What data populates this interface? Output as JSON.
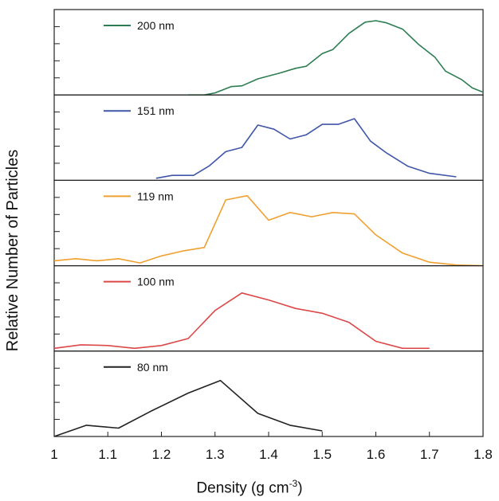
{
  "chart_data": {
    "type": "line",
    "xlabel": "Density (g cm",
    "xlabel_sup": "-3",
    "xlabel_end": ")",
    "ylabel": "Relative Number of Particles",
    "xlim": [
      1.0,
      1.8
    ],
    "x_ticks": [
      "1",
      "1.1",
      "1.2",
      "1.3",
      "1.4",
      "1.5",
      "1.6",
      "1.7",
      "1.8"
    ],
    "series": [
      {
        "name": "200 nm",
        "color": "#2e7d52",
        "ymax": 1.0,
        "x": [
          1.25,
          1.28,
          1.3,
          1.33,
          1.35,
          1.38,
          1.42,
          1.45,
          1.47,
          1.5,
          1.52,
          1.55,
          1.58,
          1.6,
          1.62,
          1.65,
          1.68,
          1.71,
          1.73,
          1.76,
          1.78,
          1.8
        ],
        "y": [
          0.0,
          0.0,
          0.03,
          0.12,
          0.13,
          0.23,
          0.31,
          0.38,
          0.41,
          0.59,
          0.65,
          0.88,
          1.04,
          1.06,
          1.03,
          0.94,
          0.72,
          0.54,
          0.34,
          0.22,
          0.1,
          0.04
        ]
      },
      {
        "name": "151 nm",
        "color": "#3f56a8",
        "ymax": 1.0,
        "x": [
          1.19,
          1.22,
          1.26,
          1.29,
          1.32,
          1.35,
          1.38,
          1.41,
          1.44,
          1.47,
          1.5,
          1.53,
          1.56,
          1.59,
          1.62,
          1.66,
          1.7,
          1.75
        ],
        "y": [
          0.03,
          0.07,
          0.07,
          0.21,
          0.41,
          0.47,
          0.79,
          0.73,
          0.59,
          0.65,
          0.8,
          0.8,
          0.88,
          0.56,
          0.39,
          0.2,
          0.1,
          0.05
        ]
      },
      {
        "name": "119 nm",
        "color": "#f0a030",
        "ymax": 1.0,
        "x": [
          1.0,
          1.04,
          1.08,
          1.12,
          1.16,
          1.2,
          1.24,
          1.28,
          1.32,
          1.36,
          1.4,
          1.44,
          1.48,
          1.52,
          1.56,
          1.6,
          1.65,
          1.7,
          1.75,
          1.8
        ],
        "y": [
          0.07,
          0.1,
          0.07,
          0.1,
          0.04,
          0.14,
          0.21,
          0.26,
          0.94,
          1.0,
          0.65,
          0.76,
          0.7,
          0.76,
          0.74,
          0.44,
          0.18,
          0.05,
          0.01,
          0.0
        ]
      },
      {
        "name": "100 nm",
        "color": "#dc4848",
        "ymax": 1.0,
        "x": [
          1.0,
          1.05,
          1.1,
          1.15,
          1.2,
          1.25,
          1.3,
          1.35,
          1.4,
          1.45,
          1.5,
          1.55,
          1.6,
          1.65,
          1.7
        ],
        "y": [
          0.04,
          0.09,
          0.08,
          0.04,
          0.08,
          0.18,
          0.58,
          0.83,
          0.73,
          0.61,
          0.54,
          0.41,
          0.14,
          0.04,
          0.04
        ]
      },
      {
        "name": "80 nm",
        "color": "#222222",
        "ymax": 1.0,
        "x": [
          1.0,
          1.06,
          1.12,
          1.18,
          1.25,
          1.31,
          1.38,
          1.44,
          1.5
        ],
        "y": [
          0.0,
          0.16,
          0.12,
          0.36,
          0.62,
          0.8,
          0.33,
          0.16,
          0.08
        ]
      }
    ]
  }
}
